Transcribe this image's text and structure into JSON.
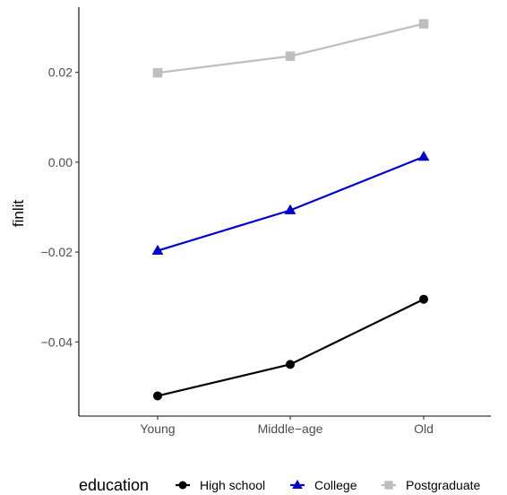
{
  "chart_data": {
    "type": "line",
    "title": "",
    "xlabel": "",
    "ylabel": "finlit",
    "categories": [
      "Young",
      "Middle−age",
      "Old"
    ],
    "ylim": [
      -0.0565,
      0.0345
    ],
    "yticks": [
      -0.04,
      -0.02,
      0.0,
      0.02
    ],
    "ytick_labels": [
      "−0.04",
      "−0.02",
      "0.00",
      "0.02"
    ],
    "grid": false,
    "legend": {
      "title": "education",
      "placement": "bottom"
    },
    "series": [
      {
        "name": "High school",
        "color": "#000000",
        "marker": "circle",
        "values": [
          -0.052,
          -0.045,
          -0.0305
        ]
      },
      {
        "name": "College",
        "color": "#0000cc",
        "marker": "triangle",
        "values": [
          -0.0197,
          -0.0107,
          0.0012
        ]
      },
      {
        "name": "Postgraduate",
        "color": "#bebebe",
        "marker": "square",
        "values": [
          0.0199,
          0.0236,
          0.0308
        ]
      }
    ]
  }
}
